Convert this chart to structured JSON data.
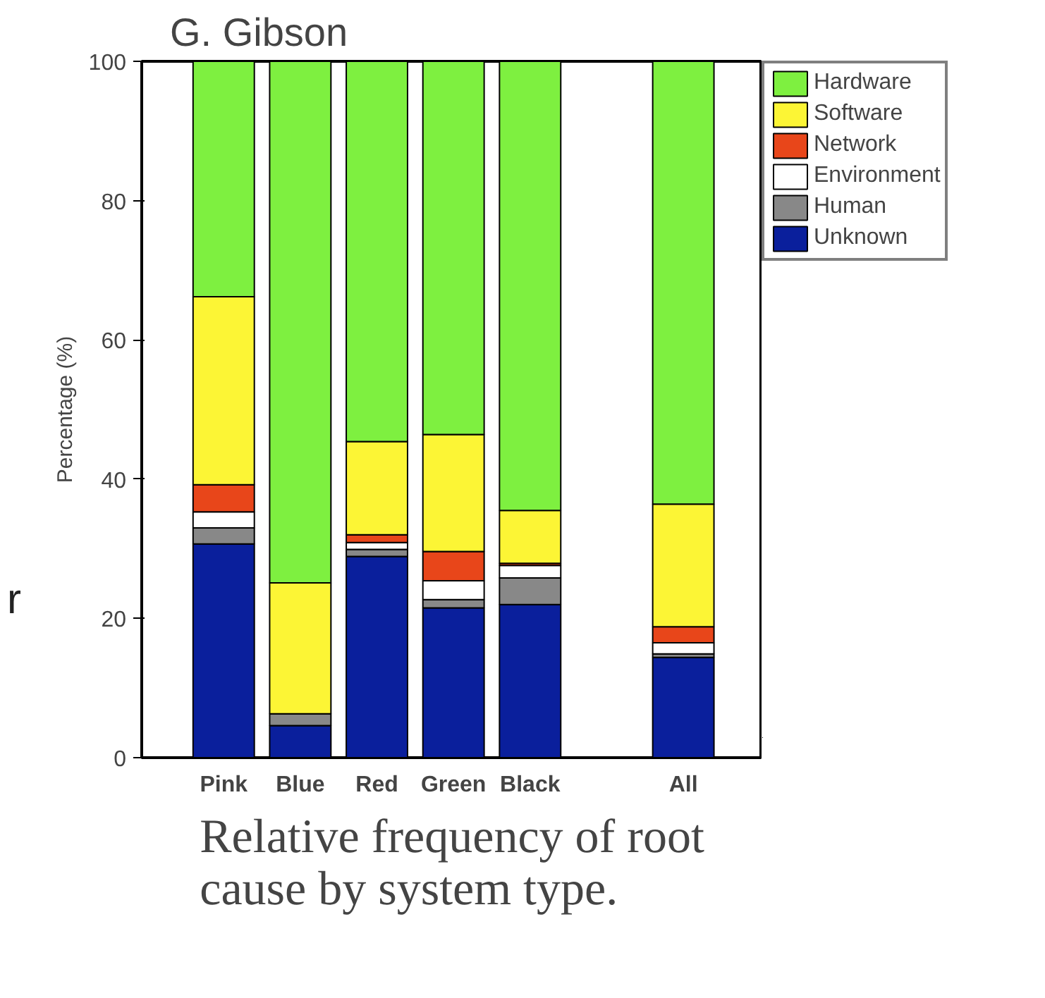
{
  "chart_data": {
    "type": "bar",
    "stacked": true,
    "title": "Relative frequency of root cause by system type.",
    "ylabel": "Percentage (%)",
    "annotations": [
      "G. Gibson",
      "r"
    ],
    "categories": [
      "Pink",
      "Blue",
      "Red",
      "Green",
      "Black",
      null,
      "All"
    ],
    "series": [
      {
        "name": "Unknown",
        "color": "#0a1f9c",
        "values": [
          30.7,
          4.6,
          28.9,
          21.5,
          22.0,
          null,
          14.4
        ]
      },
      {
        "name": "Human",
        "color": "#888888",
        "values": [
          2.3,
          1.7,
          1.0,
          1.2,
          3.8,
          null,
          0.5
        ]
      },
      {
        "name": "Environment",
        "color": "#ffffff",
        "values": [
          2.3,
          0,
          1.0,
          2.7,
          1.8,
          null,
          1.6
        ]
      },
      {
        "name": "Network",
        "color": "#e8461a",
        "values": [
          3.9,
          0,
          1.1,
          4.2,
          0.3,
          null,
          2.3
        ]
      },
      {
        "name": "Software",
        "color": "#fcf535",
        "values": [
          27.0,
          18.8,
          13.4,
          16.8,
          7.6,
          null,
          17.6
        ]
      },
      {
        "name": "Hardware",
        "color": "#7ef040",
        "values": [
          33.8,
          74.9,
          54.6,
          53.6,
          64.8,
          null,
          63.6
        ]
      }
    ],
    "ylim": [
      0,
      100
    ],
    "yticks": [
      0,
      20,
      40,
      60,
      80,
      100
    ],
    "grid": false,
    "legend": "top right"
  }
}
